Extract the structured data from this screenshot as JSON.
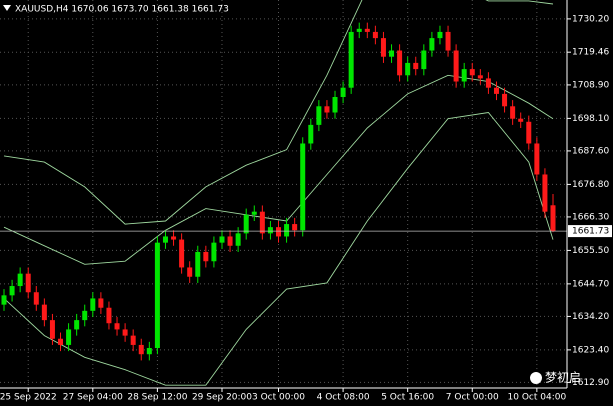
{
  "header": "XAUUSD,H4  1670.06 1673.70 1661.38 1661.73",
  "watermark": "梦初启",
  "chart_data": {
    "type": "candlestick",
    "up_color": "#00e600",
    "down_color": "#ff1a1a",
    "band_color": "#9fd89f",
    "grid": true,
    "ylim": [
      1611.1,
      1736.3
    ],
    "yticks": [
      {
        "value": 1730.2,
        "label": "1730.20"
      },
      {
        "value": 1719.46,
        "label": "1719.46"
      },
      {
        "value": 1708.9,
        "label": "1708.90"
      },
      {
        "value": 1698.1,
        "label": "1698.10"
      },
      {
        "value": 1687.6,
        "label": "1687.60"
      },
      {
        "value": 1676.8,
        "label": "1676.80"
      },
      {
        "value": 1666.3,
        "label": "1666.30"
      },
      {
        "value": 1655.5,
        "label": "1655.50"
      },
      {
        "value": 1644.7,
        "label": "1644.70"
      },
      {
        "value": 1634.2,
        "label": "1634.20"
      },
      {
        "value": 1623.4,
        "label": "1623.40"
      },
      {
        "value": 1612.9,
        "label": "1612.90"
      }
    ],
    "xticks": [
      {
        "value": 3,
        "label": "25 Sep 2022"
      },
      {
        "value": 11,
        "label": "27 Sep 04:00"
      },
      {
        "value": 19,
        "label": "28 Sep 12:00"
      },
      {
        "value": 27,
        "label": "29 Sep 20:00"
      },
      {
        "value": 34,
        "label": "3 Oct 00:00"
      },
      {
        "value": 42,
        "label": "4 Oct 08:00"
      },
      {
        "value": 50,
        "label": "5 Oct 16:00"
      },
      {
        "value": 58,
        "label": "7 Oct 00:00"
      },
      {
        "value": 66,
        "label": "10 Oct 04:00"
      }
    ],
    "current_price": {
      "value": 1661.73,
      "label": "1661.73"
    },
    "open": [
      1638,
      1641,
      1644,
      1648,
      1642,
      1638,
      1633,
      1627,
      1625,
      1630,
      1633,
      1636,
      1640,
      1637,
      1632,
      1630,
      1628,
      1625,
      1622,
      1624,
      1658,
      1660,
      1659,
      1650,
      1647,
      1655,
      1652,
      1658,
      1660,
      1657,
      1661,
      1667,
      1668,
      1661,
      1663,
      1660,
      1664,
      1662,
      1690,
      1696,
      1702,
      1700,
      1705,
      1708,
      1726,
      1727,
      1726,
      1724,
      1718,
      1720,
      1712,
      1716,
      1714,
      1720,
      1724,
      1726,
      1720,
      1710,
      1714,
      1712,
      1711,
      1708,
      1706,
      1702,
      1698,
      1697,
      1690,
      1680,
      1670.06
    ],
    "high": [
      1643,
      1646,
      1650,
      1650,
      1644,
      1640,
      1635,
      1629,
      1632,
      1635,
      1638,
      1642,
      1642,
      1639,
      1634,
      1632,
      1630,
      1627,
      1626,
      1660,
      1662,
      1662,
      1661,
      1652,
      1657,
      1657,
      1660,
      1662,
      1662,
      1663,
      1669,
      1670,
      1670,
      1665,
      1665,
      1666,
      1666,
      1692,
      1698,
      1704,
      1704,
      1707,
      1710,
      1728,
      1729,
      1729,
      1728,
      1726,
      1722,
      1722,
      1718,
      1718,
      1722,
      1726,
      1728,
      1728,
      1722,
      1716,
      1716,
      1714,
      1713,
      1710,
      1708,
      1704,
      1700,
      1699,
      1692,
      1682,
      1673.7
    ],
    "low": [
      1636,
      1639,
      1642,
      1640,
      1636,
      1631,
      1625,
      1623,
      1623,
      1628,
      1631,
      1634,
      1635,
      1630,
      1628,
      1626,
      1623,
      1620,
      1620,
      1622,
      1656,
      1657,
      1648,
      1645,
      1645,
      1650,
      1650,
      1656,
      1655,
      1655,
      1659,
      1665,
      1659,
      1659,
      1658,
      1658,
      1660,
      1660,
      1688,
      1694,
      1698,
      1698,
      1703,
      1706,
      1724,
      1724,
      1722,
      1716,
      1716,
      1710,
      1710,
      1712,
      1712,
      1718,
      1722,
      1718,
      1708,
      1708,
      1710,
      1709,
      1706,
      1704,
      1700,
      1696,
      1695,
      1688,
      1678,
      1666,
      1661.38
    ],
    "close": [
      1641,
      1644,
      1648,
      1642,
      1638,
      1633,
      1627,
      1625,
      1630,
      1633,
      1636,
      1640,
      1637,
      1632,
      1630,
      1628,
      1625,
      1622,
      1624,
      1658,
      1660,
      1659,
      1650,
      1647,
      1655,
      1652,
      1658,
      1660,
      1657,
      1661,
      1667,
      1668,
      1661,
      1663,
      1660,
      1664,
      1662,
      1690,
      1696,
      1702,
      1700,
      1705,
      1708,
      1726,
      1727,
      1726,
      1724,
      1718,
      1720,
      1712,
      1716,
      1714,
      1720,
      1724,
      1726,
      1720,
      1710,
      1714,
      1712,
      1711,
      1708,
      1706,
      1702,
      1698,
      1697,
      1690,
      1680,
      1668,
      1661.73
    ],
    "bands": {
      "index": [
        0,
        5,
        10,
        15,
        20,
        25,
        30,
        35,
        40,
        45,
        50,
        55,
        60,
        65,
        68
      ],
      "upper": [
        1686,
        1684,
        1676,
        1664,
        1665,
        1676,
        1683,
        1688,
        1712,
        1740,
        1745,
        1742,
        1736,
        1736,
        1735
      ],
      "middle": [
        1663,
        1657,
        1651,
        1652,
        1662,
        1669,
        1667,
        1665,
        1680,
        1695,
        1706,
        1712,
        1710,
        1703,
        1698
      ],
      "lower": [
        1640,
        1628,
        1621,
        1617,
        1612,
        1612,
        1630,
        1643,
        1645,
        1665,
        1682,
        1698,
        1700,
        1684,
        1659
      ]
    }
  }
}
